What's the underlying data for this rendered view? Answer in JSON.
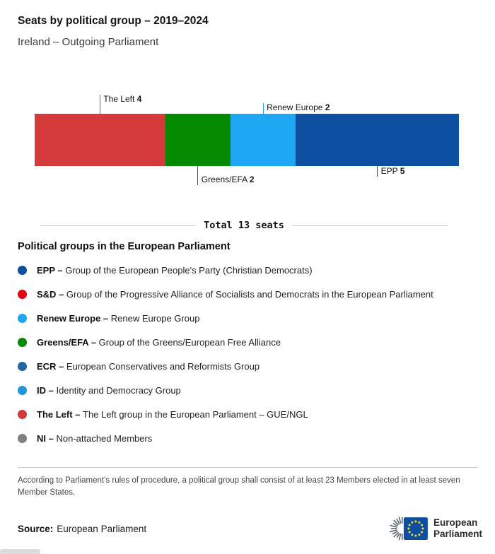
{
  "header": {
    "title": "Seats by political group – 2019–2024",
    "subtitle": "Ireland – Outgoing Parliament"
  },
  "chart_data": {
    "type": "bar",
    "variant": "horizontal-stacked",
    "title": "Seats by political group – 2019–2024",
    "subtitle": "Ireland – Outgoing Parliament",
    "total_seats": 13,
    "total_label": "Total 13 seats",
    "segments": [
      {
        "name": "The Left",
        "seats": 4,
        "color": "#d43a3a",
        "callout": {
          "side": "top",
          "length": 27
        }
      },
      {
        "name": "Greens/EFA",
        "seats": 2,
        "color": "#048a00",
        "callout": {
          "side": "bottom",
          "length": 27
        }
      },
      {
        "name": "Renew Europe",
        "seats": 2,
        "color": "#1ea7f2",
        "callout": {
          "side": "top",
          "length": 15
        }
      },
      {
        "name": "EPP",
        "seats": 5,
        "color": "#0d4fa0",
        "callout": {
          "side": "bottom",
          "length": 15
        }
      }
    ]
  },
  "legend": {
    "heading": "Political groups in the European Parliament",
    "items": [
      {
        "abbr": "EPP –",
        "desc": "Group of the European People's Party (Christian Democrats)",
        "color": "#0d4fa0"
      },
      {
        "abbr": "S&D –",
        "desc": "Group of the Progressive Alliance of Socialists and Democrats in the European Parliament",
        "color": "#e3000f"
      },
      {
        "abbr": "Renew Europe –",
        "desc": "Renew Europe Group",
        "color": "#1ea7f2"
      },
      {
        "abbr": "Greens/EFA –",
        "desc": "Group of the Greens/European Free Alliance",
        "color": "#048a00"
      },
      {
        "abbr": "ECR –",
        "desc": "European Conservatives and Reformists Group",
        "color": "#2066a8"
      },
      {
        "abbr": "ID –",
        "desc": "Identity and Democracy Group",
        "color": "#2196e0"
      },
      {
        "abbr": "The Left –",
        "desc": "The Left group in the European Parliament – GUE/NGL",
        "color": "#d43a3a"
      },
      {
        "abbr": "NI –",
        "desc": "Non-attached Members",
        "color": "#808080"
      }
    ]
  },
  "footnote": "According to Parliament’s rules of procedure, a political group shall consist of at least 23 Members elected in at least seven Member States.",
  "source": {
    "label": "Source:",
    "value": "European Parliament"
  },
  "logo": {
    "line1": "European",
    "line2": "Parliament"
  }
}
